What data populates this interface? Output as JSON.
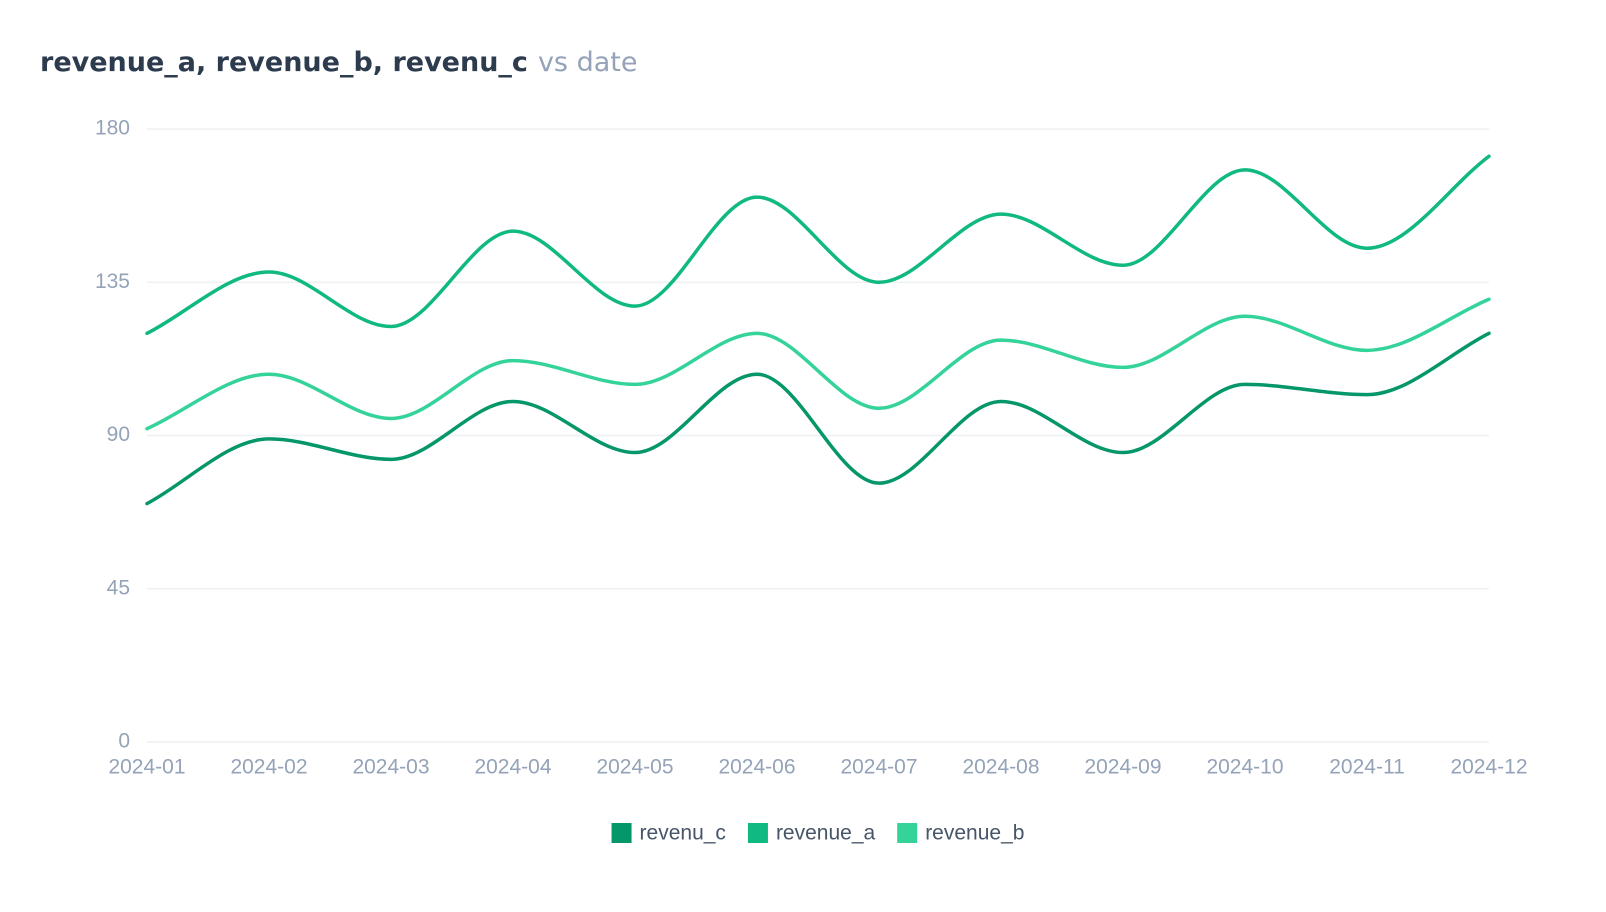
{
  "chart_data": {
    "type": "line",
    "title": "revenue_a, revenue_b, revenu_c",
    "subtitle": "vs date",
    "categories": [
      "2024-01",
      "2024-02",
      "2024-03",
      "2024-04",
      "2024-05",
      "2024-06",
      "2024-07",
      "2024-08",
      "2024-09",
      "2024-10",
      "2024-11",
      "2024-12"
    ],
    "series": [
      {
        "name": "revenu_c",
        "color": "#059669",
        "values": [
          70,
          89,
          83,
          100,
          85,
          108,
          76,
          100,
          85,
          105,
          102,
          120
        ]
      },
      {
        "name": "revenue_a",
        "color": "#10b981",
        "values": [
          120,
          138,
          122,
          150,
          128,
          160,
          135,
          155,
          140,
          168,
          145,
          172
        ]
      },
      {
        "name": "revenue_b",
        "color": "#34d399",
        "values": [
          92,
          108,
          95,
          112,
          105,
          120,
          98,
          118,
          110,
          125,
          115,
          130
        ]
      }
    ],
    "ylim": [
      0,
      180
    ],
    "yticks": [
      0,
      45,
      90,
      135,
      180
    ],
    "grid": true,
    "legend": "bottom",
    "smooth": true
  }
}
